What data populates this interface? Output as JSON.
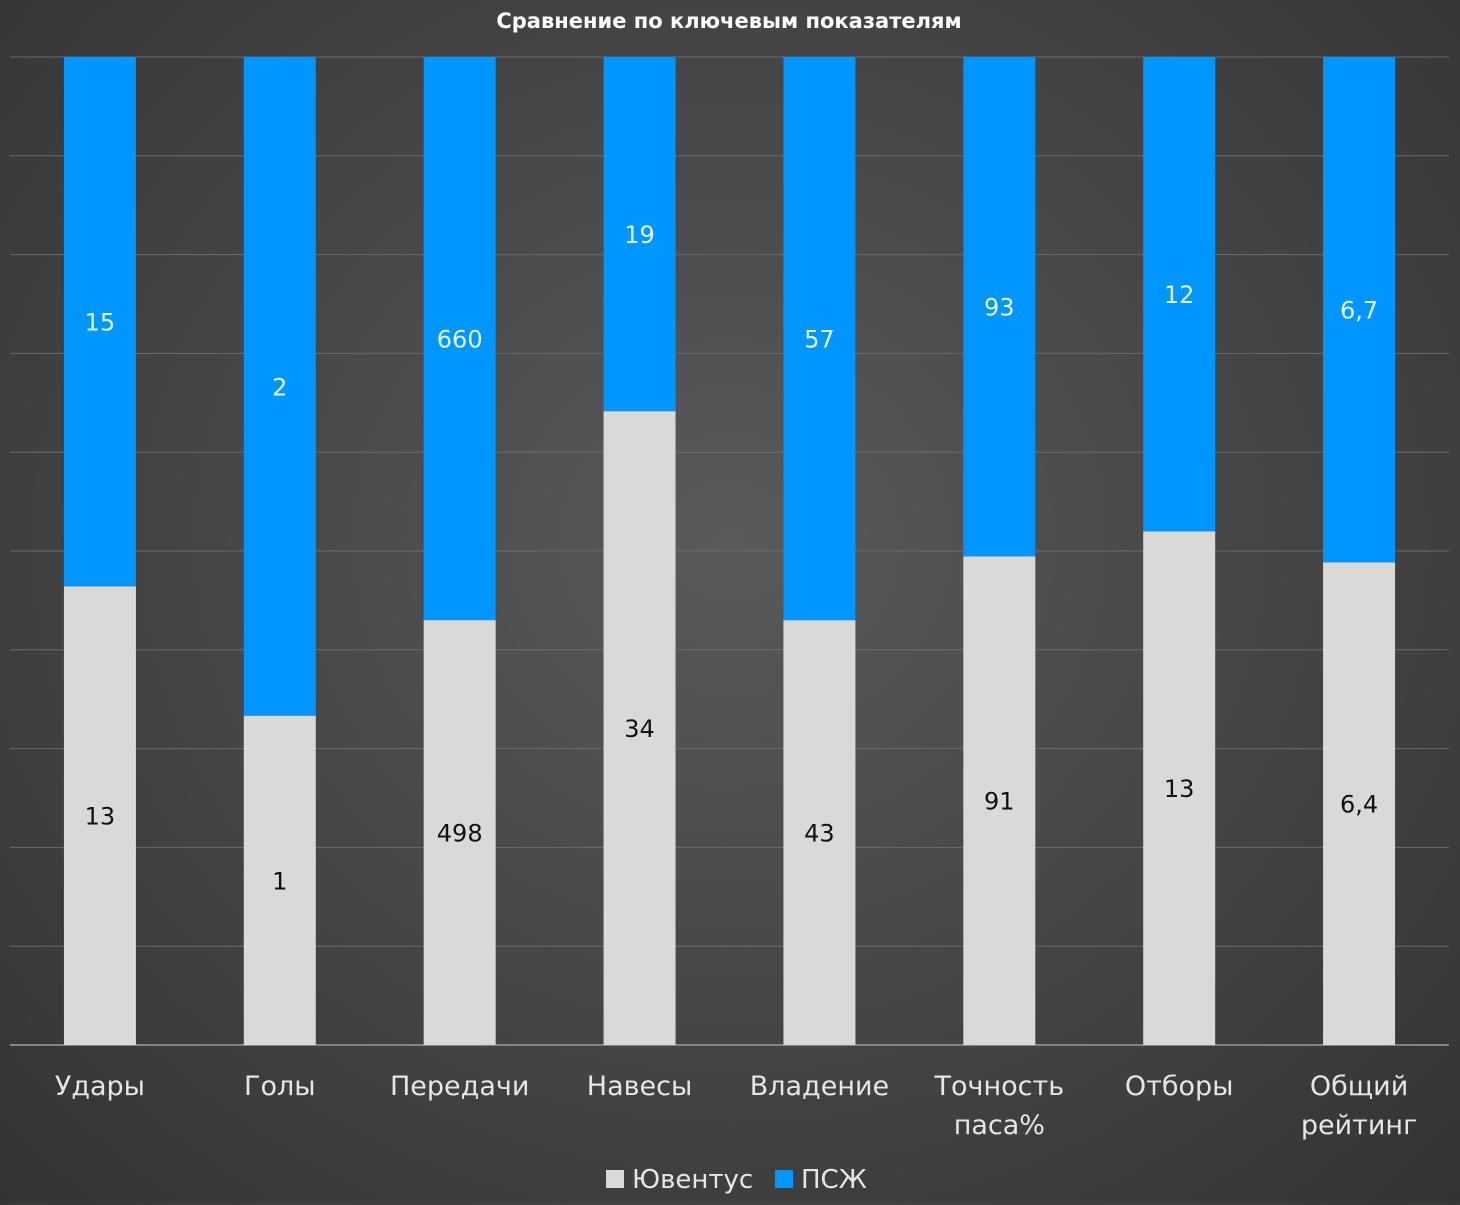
{
  "chart_data": {
    "type": "bar",
    "stacked": "percent",
    "title": "Сравнение по ключевым показателям",
    "categories": [
      [
        "Удары"
      ],
      [
        "Голы"
      ],
      [
        "Передачи"
      ],
      [
        "Навесы"
      ],
      [
        "Владение"
      ],
      [
        "Точность",
        "паса%"
      ],
      [
        "Отборы"
      ],
      [
        "Общий",
        "рейтинг"
      ]
    ],
    "series": [
      {
        "name": "Ювентус",
        "color": "#d9d9d9",
        "values": [
          13,
          1,
          498,
          34,
          43,
          91,
          13,
          6.4
        ],
        "labels": [
          "13",
          "1",
          "498",
          "34",
          "43",
          "91",
          "13",
          "6,4"
        ]
      },
      {
        "name": "ПСЖ",
        "color": "#0096ff",
        "values": [
          15,
          2,
          660,
          19,
          57,
          93,
          12,
          6.7
        ],
        "labels": [
          "15",
          "2",
          "660",
          "19",
          "57",
          "93",
          "12",
          "6,7"
        ]
      }
    ],
    "ylim": [
      0,
      100
    ],
    "grid": true,
    "legend_position": "bottom"
  }
}
